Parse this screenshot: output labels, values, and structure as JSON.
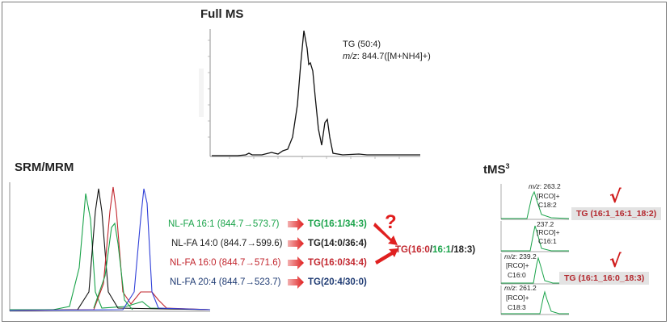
{
  "full_ms": {
    "title": "Full MS",
    "compound": "TG (50:4)",
    "mz_prefix": "m/z",
    "mz_value": ": 844.7([M+NH4]+)"
  },
  "srm": {
    "title": "SRM/MRM",
    "rows": [
      {
        "label": "NL-FA 16:1",
        "transition": " (844.7→573.7)",
        "result": "TG(16:1/34:3)",
        "color": "#1aa34a"
      },
      {
        "label": "NL-FA 14:0",
        "transition": " (844.7→599.6)",
        "result": "TG(14:0/36:4)",
        "color": "#222222"
      },
      {
        "label": "NL-FA 16:0",
        "transition": " (844.7→571.6)",
        "result": "TG(16:0/34:4)",
        "color": "#c2262e"
      },
      {
        "label": "NL-FA 20:4",
        "transition": " (844.7→523.7)",
        "result": "TG(20:4/30:0)",
        "color": "#1f3b73"
      }
    ],
    "conclusion": {
      "prefix": "TG(",
      "part1": "16:0",
      "sep1": "/",
      "part2": "16:1",
      "sep2": "/",
      "part3": "18:3)",
      "color1": "#c2262e",
      "color2": "#1aa34a",
      "color3": "#222222"
    },
    "question": "?"
  },
  "tms3": {
    "title": "tMS",
    "superscript": "3",
    "panels": [
      {
        "mz_prefix": "m/z",
        "mz": ": 263.2",
        "ion": "[RCO]+",
        "fa": "C18:2"
      },
      {
        "mz_prefix": "",
        "mz": "237.2",
        "ion": "[RCO]+",
        "fa": "C16:1"
      },
      {
        "mz_prefix": "m/z",
        "mz": ": 239.2",
        "ion": "[RCO]+",
        "fa": "C16:0"
      },
      {
        "mz_prefix": "m/z",
        "mz": ": 261.2",
        "ion": "[RCO]+",
        "fa": "C18:3"
      }
    ],
    "results": [
      "TG (16:1_16:1_18:2)",
      "TG (16:1_16:0_18:3)"
    ],
    "check": "√"
  },
  "colors": {
    "green": "#1aa34a",
    "red": "#d01c1c",
    "dark_red": "#b3262c",
    "navy": "#1f3b73",
    "blue": "#2f3fd8",
    "gray_box": "#e3e3e3"
  }
}
